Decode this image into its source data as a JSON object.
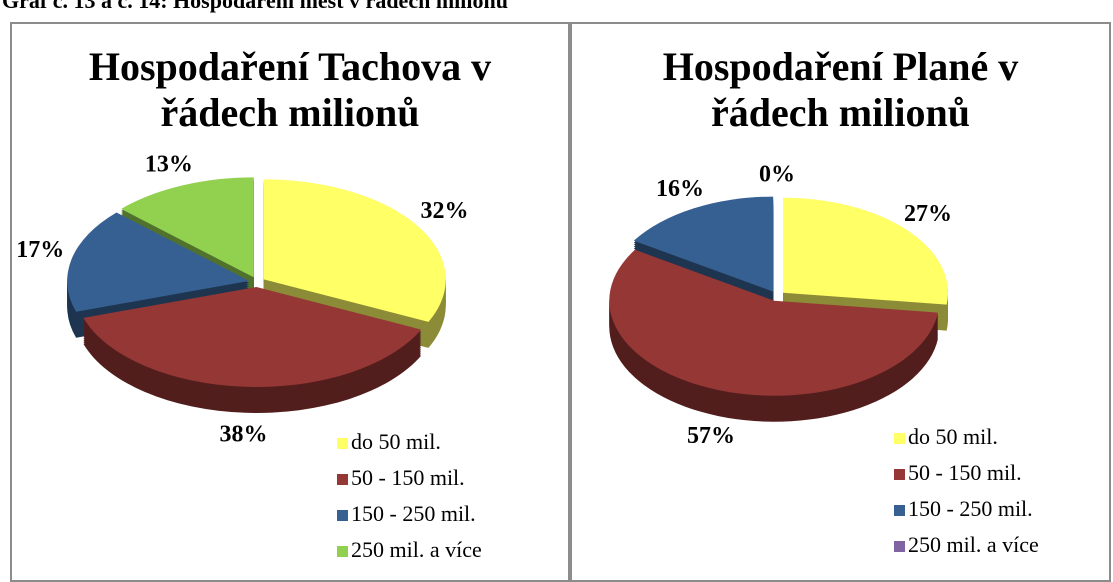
{
  "heading": "Graf č. 13 a č. 14: Hospodaření měst v řádech milionů",
  "chart_data": [
    {
      "type": "pie",
      "title": "Hospodaření Tachova v řádech milionů",
      "categories": [
        "do 50 mil.",
        "50 - 150 mil.",
        "150 - 250 mil.",
        "250 mil. a více"
      ],
      "values": [
        32,
        38,
        17,
        13
      ],
      "value_labels": [
        "32%",
        "38%",
        "17%",
        "13%"
      ],
      "colors": [
        "#ffff66",
        "#953735",
        "#376092",
        "#92d050"
      ]
    },
    {
      "type": "pie",
      "title": "Hospodaření Plané v řádech milionů",
      "categories": [
        "do 50 mil.",
        "50 - 150 mil.",
        "150 - 250 mil.",
        "250 mil. a více"
      ],
      "values": [
        27,
        57,
        16,
        0
      ],
      "value_labels": [
        "27%",
        "57%",
        "16%",
        "0%"
      ],
      "colors": [
        "#ffff66",
        "#953735",
        "#376092",
        "#8064a2"
      ]
    }
  ]
}
